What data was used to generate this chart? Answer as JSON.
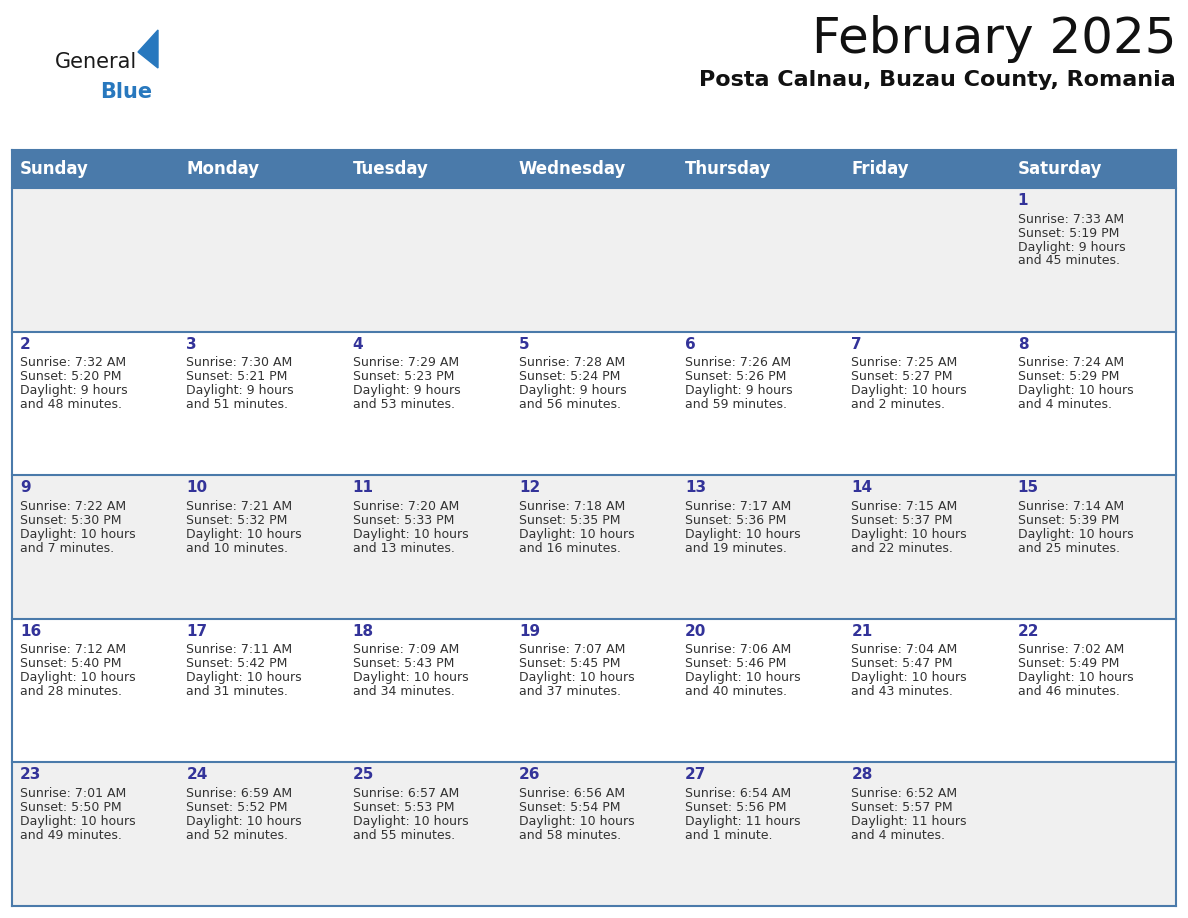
{
  "title": "February 2025",
  "subtitle": "Posta Calnau, Buzau County, Romania",
  "days_of_week": [
    "Sunday",
    "Monday",
    "Tuesday",
    "Wednesday",
    "Thursday",
    "Friday",
    "Saturday"
  ],
  "header_bg": "#4a7aaa",
  "header_text_color": "#ffffff",
  "row_bg_light": "#f0f0f0",
  "row_bg_white": "#ffffff",
  "day_num_color": "#333399",
  "cell_text_color": "#333333",
  "divider_color": "#4a7aaa",
  "logo_color": "#2878be",
  "logo_text_color": "#1a1a1a",
  "title_fontsize": 36,
  "subtitle_fontsize": 16,
  "header_fontsize": 12,
  "day_num_fontsize": 11,
  "cell_fontsize": 9,
  "weeks": [
    [
      {
        "day": null,
        "sunrise": null,
        "sunset": null,
        "daylight": null
      },
      {
        "day": null,
        "sunrise": null,
        "sunset": null,
        "daylight": null
      },
      {
        "day": null,
        "sunrise": null,
        "sunset": null,
        "daylight": null
      },
      {
        "day": null,
        "sunrise": null,
        "sunset": null,
        "daylight": null
      },
      {
        "day": null,
        "sunrise": null,
        "sunset": null,
        "daylight": null
      },
      {
        "day": null,
        "sunrise": null,
        "sunset": null,
        "daylight": null
      },
      {
        "day": 1,
        "sunrise": "7:33 AM",
        "sunset": "5:19 PM",
        "daylight": "9 hours and 45 minutes."
      }
    ],
    [
      {
        "day": 2,
        "sunrise": "7:32 AM",
        "sunset": "5:20 PM",
        "daylight": "9 hours and 48 minutes."
      },
      {
        "day": 3,
        "sunrise": "7:30 AM",
        "sunset": "5:21 PM",
        "daylight": "9 hours and 51 minutes."
      },
      {
        "day": 4,
        "sunrise": "7:29 AM",
        "sunset": "5:23 PM",
        "daylight": "9 hours and 53 minutes."
      },
      {
        "day": 5,
        "sunrise": "7:28 AM",
        "sunset": "5:24 PM",
        "daylight": "9 hours and 56 minutes."
      },
      {
        "day": 6,
        "sunrise": "7:26 AM",
        "sunset": "5:26 PM",
        "daylight": "9 hours and 59 minutes."
      },
      {
        "day": 7,
        "sunrise": "7:25 AM",
        "sunset": "5:27 PM",
        "daylight": "10 hours and 2 minutes."
      },
      {
        "day": 8,
        "sunrise": "7:24 AM",
        "sunset": "5:29 PM",
        "daylight": "10 hours and 4 minutes."
      }
    ],
    [
      {
        "day": 9,
        "sunrise": "7:22 AM",
        "sunset": "5:30 PM",
        "daylight": "10 hours and 7 minutes."
      },
      {
        "day": 10,
        "sunrise": "7:21 AM",
        "sunset": "5:32 PM",
        "daylight": "10 hours and 10 minutes."
      },
      {
        "day": 11,
        "sunrise": "7:20 AM",
        "sunset": "5:33 PM",
        "daylight": "10 hours and 13 minutes."
      },
      {
        "day": 12,
        "sunrise": "7:18 AM",
        "sunset": "5:35 PM",
        "daylight": "10 hours and 16 minutes."
      },
      {
        "day": 13,
        "sunrise": "7:17 AM",
        "sunset": "5:36 PM",
        "daylight": "10 hours and 19 minutes."
      },
      {
        "day": 14,
        "sunrise": "7:15 AM",
        "sunset": "5:37 PM",
        "daylight": "10 hours and 22 minutes."
      },
      {
        "day": 15,
        "sunrise": "7:14 AM",
        "sunset": "5:39 PM",
        "daylight": "10 hours and 25 minutes."
      }
    ],
    [
      {
        "day": 16,
        "sunrise": "7:12 AM",
        "sunset": "5:40 PM",
        "daylight": "10 hours and 28 minutes."
      },
      {
        "day": 17,
        "sunrise": "7:11 AM",
        "sunset": "5:42 PM",
        "daylight": "10 hours and 31 minutes."
      },
      {
        "day": 18,
        "sunrise": "7:09 AM",
        "sunset": "5:43 PM",
        "daylight": "10 hours and 34 minutes."
      },
      {
        "day": 19,
        "sunrise": "7:07 AM",
        "sunset": "5:45 PM",
        "daylight": "10 hours and 37 minutes."
      },
      {
        "day": 20,
        "sunrise": "7:06 AM",
        "sunset": "5:46 PM",
        "daylight": "10 hours and 40 minutes."
      },
      {
        "day": 21,
        "sunrise": "7:04 AM",
        "sunset": "5:47 PM",
        "daylight": "10 hours and 43 minutes."
      },
      {
        "day": 22,
        "sunrise": "7:02 AM",
        "sunset": "5:49 PM",
        "daylight": "10 hours and 46 minutes."
      }
    ],
    [
      {
        "day": 23,
        "sunrise": "7:01 AM",
        "sunset": "5:50 PM",
        "daylight": "10 hours and 49 minutes."
      },
      {
        "day": 24,
        "sunrise": "6:59 AM",
        "sunset": "5:52 PM",
        "daylight": "10 hours and 52 minutes."
      },
      {
        "day": 25,
        "sunrise": "6:57 AM",
        "sunset": "5:53 PM",
        "daylight": "10 hours and 55 minutes."
      },
      {
        "day": 26,
        "sunrise": "6:56 AM",
        "sunset": "5:54 PM",
        "daylight": "10 hours and 58 minutes."
      },
      {
        "day": 27,
        "sunrise": "6:54 AM",
        "sunset": "5:56 PM",
        "daylight": "11 hours and 1 minute."
      },
      {
        "day": 28,
        "sunrise": "6:52 AM",
        "sunset": "5:57 PM",
        "daylight": "11 hours and 4 minutes."
      },
      {
        "day": null,
        "sunrise": null,
        "sunset": null,
        "daylight": null
      }
    ]
  ]
}
